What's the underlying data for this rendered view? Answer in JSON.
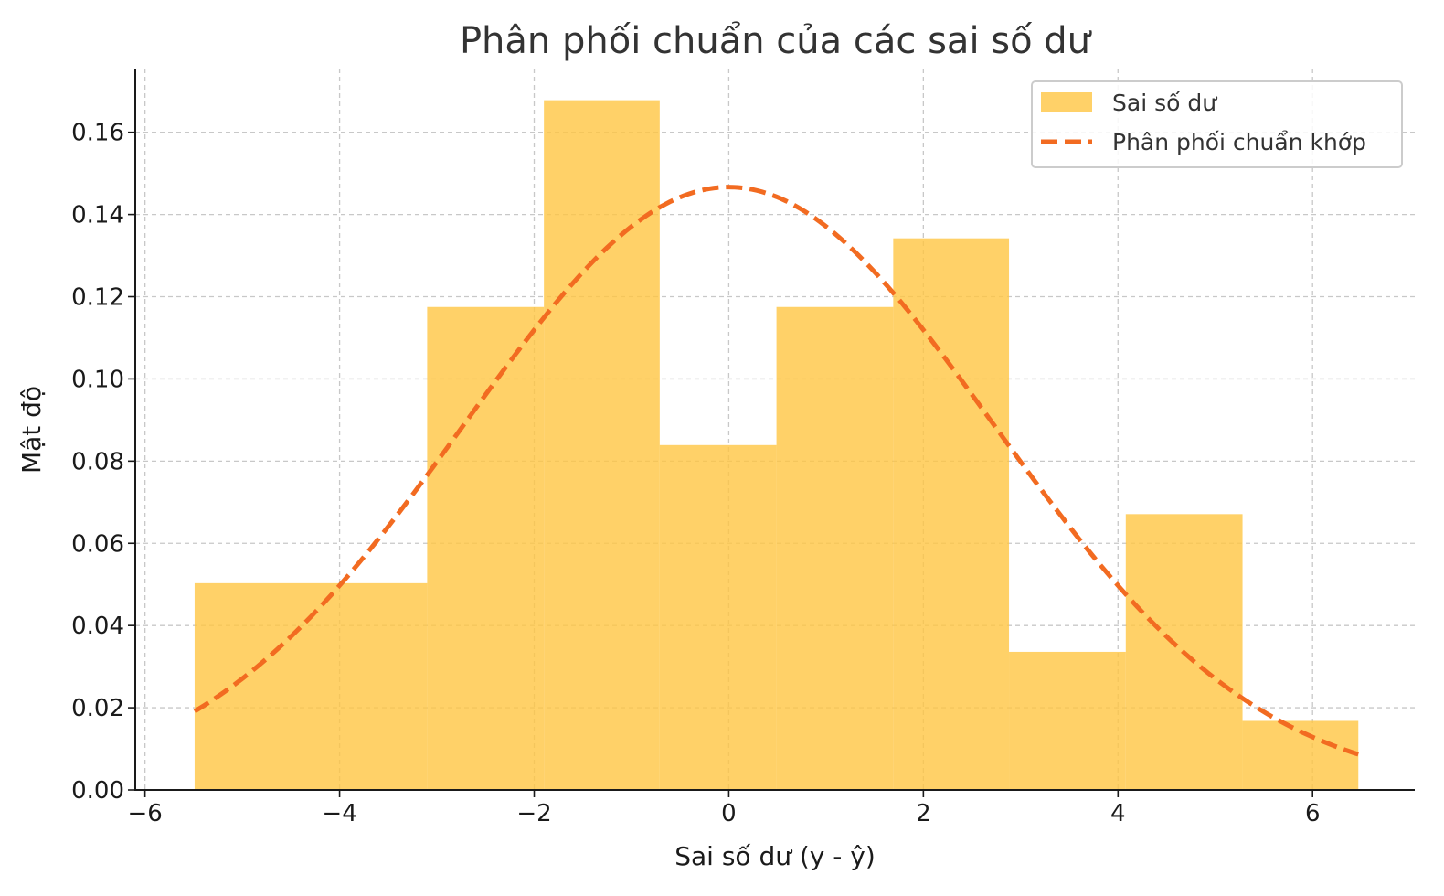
{
  "chart_data": {
    "type": "bar",
    "title": "Phân phối chuẩn của các sai số dư",
    "xlabel": "Sai số dư (y - ŷ)",
    "ylabel": "Mật độ",
    "xlim": [
      -6.1,
      7.05
    ],
    "ylim": [
      0,
      0.1755
    ],
    "x_ticks": [
      -6,
      -4,
      -2,
      0,
      2,
      4,
      6
    ],
    "x_tick_labels": [
      "−6",
      "−4",
      "−2",
      "0",
      "2",
      "4",
      "6"
    ],
    "y_ticks": [
      0,
      0.02,
      0.04,
      0.06,
      0.08,
      0.1,
      0.12,
      0.14,
      0.16
    ],
    "y_tick_labels": [
      "0.00",
      "0.02",
      "0.04",
      "0.06",
      "0.08",
      "0.10",
      "0.12",
      "0.14",
      "0.16"
    ],
    "grid": true,
    "legend_position": "top-right",
    "histogram": {
      "name": "Sai số dư",
      "color": "#FFC542",
      "bins": [
        {
          "x0": -5.49,
          "x1": -3.1,
          "density": 0.0503
        },
        {
          "x0": -3.1,
          "x1": -1.9,
          "density": 0.1175
        },
        {
          "x0": -1.9,
          "x1": -0.71,
          "density": 0.1678
        },
        {
          "x0": -0.71,
          "x1": 0.49,
          "density": 0.0839
        },
        {
          "x0": 0.49,
          "x1": 1.69,
          "density": 0.1175
        },
        {
          "x0": 1.69,
          "x1": 2.88,
          "density": 0.1342
        },
        {
          "x0": 2.88,
          "x1": 4.08,
          "density": 0.0336
        },
        {
          "x0": 4.08,
          "x1": 5.28,
          "density": 0.0671
        },
        {
          "x0": 5.28,
          "x1": 6.47,
          "density": 0.0168
        }
      ]
    },
    "fit_curve": {
      "name": "Phân phối chuẩn khớp",
      "color": "#F26B21",
      "style": "dashed",
      "x_range": [
        -5.49,
        6.47
      ],
      "mean": 0.0,
      "std": 2.72
    }
  }
}
